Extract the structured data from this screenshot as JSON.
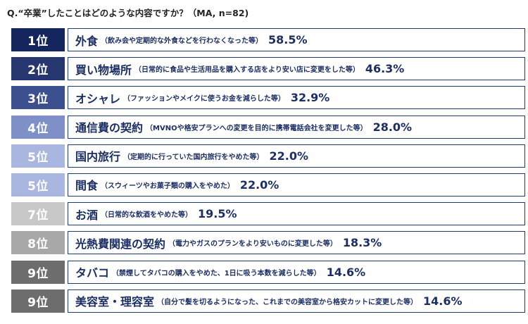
{
  "chart_data": {
    "type": "table",
    "question": "Q.“卒業”したことはどのような内容ですか？（MA, n=82)",
    "rows": [
      {
        "rank": "1位",
        "item": "外食",
        "detail": "（飲み会や定期的な外食などを行わなくなった等）",
        "value": "58.5%",
        "percent": 58.5,
        "rank_color": "#15255e"
      },
      {
        "rank": "2位",
        "item": "買い物場所",
        "detail": "（日常的に食品や生活用品を購入する店をより安い店に変更をした等）",
        "value": "46.3%",
        "percent": 46.3,
        "rank_color": "#26366f"
      },
      {
        "rank": "3位",
        "item": "オシャレ",
        "detail": "（ファッションやメイクに使うお金を減らした等）",
        "value": "32.9%",
        "percent": 32.9,
        "rank_color": "#3c4f8f"
      },
      {
        "rank": "4位",
        "item": "通信費の契約",
        "detail": "（MVNOや格安プランへの変更を目的に携帯電話会社を変更した等）",
        "value": "28.0%",
        "percent": 28.0,
        "rank_color": "#7f90c8"
      },
      {
        "rank": "5位",
        "item": "国内旅行",
        "detail": "（定期的に行っていた国内旅行をやめた等）",
        "value": "22.0%",
        "percent": 22.0,
        "rank_color": "#a8b6e0"
      },
      {
        "rank": "5位",
        "item": "間食",
        "detail": "（スウィーツやお菓子類の購入をやめた）",
        "value": "22.0%",
        "percent": 22.0,
        "rank_color": "#a8b6e0"
      },
      {
        "rank": "7位",
        "item": "お酒",
        "detail": "（日常的な飲酒をやめた等）",
        "value": "19.5%",
        "percent": 19.5,
        "rank_color": "#c8c8c8"
      },
      {
        "rank": "8位",
        "item": "光熱費関連の契約",
        "detail": "（電力やガスのプランをより安いものに変更した等）",
        "value": "18.3%",
        "percent": 18.3,
        "rank_color": "#a8a8a8"
      },
      {
        "rank": "9位",
        "item": "タバコ",
        "detail": "（禁煙してタバコの購入をやめた、1日に吸う本数を減らした等）",
        "value": "14.6%",
        "percent": 14.6,
        "rank_color": "#6d6d6d"
      },
      {
        "rank": "9位",
        "item": "美容室・理容室",
        "detail": "（自分で髪を切るようになった、これまでの美容室から格安カットに変更した等）",
        "value": "14.6%",
        "percent": 14.6,
        "rank_color": "#6d6d6d"
      }
    ]
  }
}
